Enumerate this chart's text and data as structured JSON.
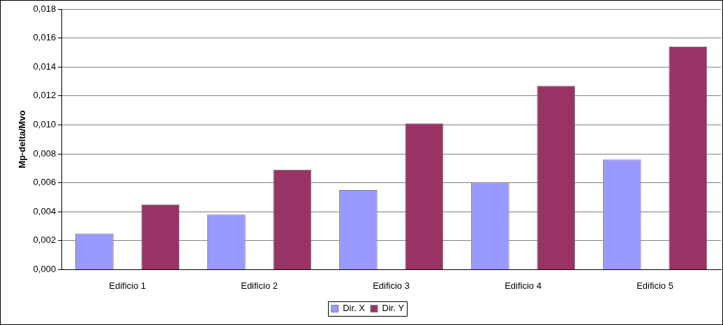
{
  "chart_data": {
    "type": "bar",
    "ylabel": "Mp-delta/Mvo",
    "categories": [
      "Edificio 1",
      "Edificio 2",
      "Edificio 3",
      "Edificio 4",
      "Edificio 5"
    ],
    "series": [
      {
        "name": "Dir. X",
        "color": "#9999ff",
        "values": [
          0.0025,
          0.0038,
          0.0055,
          0.006,
          0.0076
        ]
      },
      {
        "name": "Dir. Y",
        "color": "#993366",
        "values": [
          0.0045,
          0.0069,
          0.0101,
          0.0127,
          0.0154
        ]
      }
    ],
    "ylim": [
      0,
      0.018
    ],
    "yticks": [
      {
        "value": 0,
        "label": "0,000"
      },
      {
        "value": 0.002,
        "label": "0,002"
      },
      {
        "value": 0.004,
        "label": "0,004"
      },
      {
        "value": 0.006,
        "label": "0,006"
      },
      {
        "value": 0.008,
        "label": "0,008"
      },
      {
        "value": 0.01,
        "label": "0,010"
      },
      {
        "value": 0.012,
        "label": "0,012"
      },
      {
        "value": 0.014,
        "label": "0,014"
      },
      {
        "value": 0.016,
        "label": "0,016"
      },
      {
        "value": 0.018,
        "label": "0,018"
      }
    ],
    "grid": "y",
    "legend": "bottom"
  }
}
